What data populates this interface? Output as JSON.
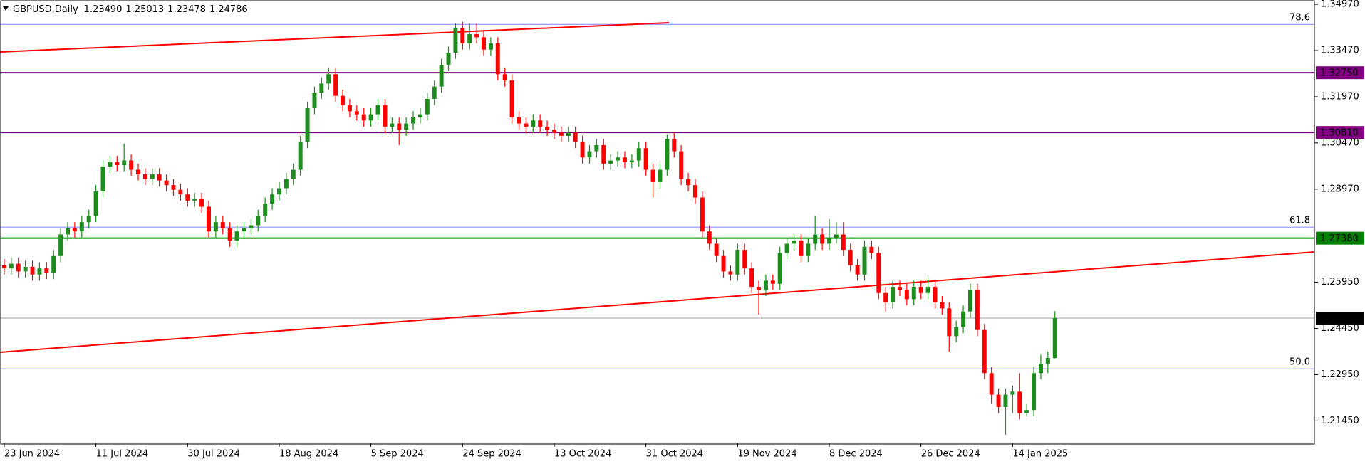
{
  "chart_data": {
    "type": "candlestick",
    "title": "GBPUSD,Daily",
    "ohlc_labels": [
      "1.23490",
      "1.25013",
      "1.23478",
      "1.24786"
    ],
    "colors": {
      "up": "#1e8c1e",
      "down": "#ff0000"
    },
    "xlim": [
      -0.6,
      185.8
    ],
    "ylim": [
      1.2072,
      1.3511
    ],
    "xticks": [
      {
        "value": 0,
        "label": "23 Jun 2024"
      },
      {
        "value": 13,
        "label": "11 Jul 2024"
      },
      {
        "value": 26,
        "label": "30 Jul 2024"
      },
      {
        "value": 39,
        "label": "18 Aug 2024"
      },
      {
        "value": 52,
        "label": "5 Sep 2024"
      },
      {
        "value": 65,
        "label": "24 Sep 2024"
      },
      {
        "value": 78,
        "label": "13 Oct 2024"
      },
      {
        "value": 91,
        "label": "31 Oct 2024"
      },
      {
        "value": 104,
        "label": "19 Nov 2024"
      },
      {
        "value": 117,
        "label": "8 Dec 2024"
      },
      {
        "value": 130,
        "label": "26 Dec 2024"
      },
      {
        "value": 143,
        "label": "14 Jan 2025"
      }
    ],
    "yticks": [
      {
        "value": 1.3497,
        "label": "1.34970"
      },
      {
        "value": 1.3347,
        "label": "1.33470"
      },
      {
        "value": 1.3197,
        "label": "1.31970"
      },
      {
        "value": 1.3047,
        "label": "1.30470"
      },
      {
        "value": 1.2897,
        "label": "1.28970"
      },
      {
        "value": 1.2595,
        "label": "1.25950"
      },
      {
        "value": 1.2445,
        "label": "1.24450"
      },
      {
        "value": 1.2295,
        "label": "1.22950"
      },
      {
        "value": 1.2145,
        "label": "1.21450"
      }
    ],
    "levels": [
      {
        "value": 1.3275,
        "label": "1.32750",
        "color": "#800080"
      },
      {
        "value": 1.3081,
        "label": "1.30810",
        "color": "#800080"
      },
      {
        "value": 1.2738,
        "label": "1.27380",
        "color": "#008000"
      },
      {
        "value": 1.24786,
        "label": "1.24786",
        "color": "#000000"
      }
    ],
    "fib_levels": [
      {
        "value": 1.3432,
        "label": "78.6"
      },
      {
        "value": 1.2774,
        "label": "61.8"
      },
      {
        "value": 1.2314,
        "label": "50.0"
      }
    ],
    "ohlc": [
      [
        1.265,
        1.267,
        1.262,
        1.264
      ],
      [
        1.264,
        1.2675,
        1.262,
        1.2655
      ],
      [
        1.2655,
        1.2675,
        1.261,
        1.263
      ],
      [
        1.263,
        1.2665,
        1.261,
        1.2645
      ],
      [
        1.2645,
        1.2665,
        1.26,
        1.262
      ],
      [
        1.262,
        1.266,
        1.26,
        1.264
      ],
      [
        1.264,
        1.266,
        1.2605,
        1.2625
      ],
      [
        1.2625,
        1.27,
        1.2605,
        1.268
      ],
      [
        1.268,
        1.277,
        1.266,
        1.275
      ],
      [
        1.275,
        1.279,
        1.273,
        1.277
      ],
      [
        1.277,
        1.279,
        1.274,
        1.276
      ],
      [
        1.276,
        1.281,
        1.274,
        1.279
      ],
      [
        1.279,
        1.283,
        1.277,
        1.281
      ],
      [
        1.281,
        1.291,
        1.279,
        1.289
      ],
      [
        1.289,
        1.299,
        1.287,
        1.297
      ],
      [
        1.297,
        1.3005,
        1.295,
        1.2985
      ],
      [
        1.2985,
        1.3005,
        1.2955,
        1.2975
      ],
      [
        1.2975,
        1.3045,
        1.2955,
        1.299
      ],
      [
        1.299,
        1.301,
        1.294,
        1.296
      ],
      [
        1.296,
        1.298,
        1.2925,
        1.2945
      ],
      [
        1.2945,
        1.2965,
        1.291,
        1.293
      ],
      [
        1.293,
        1.2965,
        1.291,
        1.2945
      ],
      [
        1.2945,
        1.2965,
        1.2905,
        1.2925
      ],
      [
        1.2925,
        1.2945,
        1.289,
        1.291
      ],
      [
        1.291,
        1.293,
        1.2875,
        1.2895
      ],
      [
        1.2895,
        1.2915,
        1.286,
        1.288
      ],
      [
        1.288,
        1.29,
        1.284,
        1.286
      ],
      [
        1.286,
        1.2885,
        1.284,
        1.2865
      ],
      [
        1.2865,
        1.2885,
        1.282,
        1.284
      ],
      [
        1.284,
        1.286,
        1.274,
        1.276
      ],
      [
        1.276,
        1.281,
        1.274,
        1.279
      ],
      [
        1.279,
        1.281,
        1.275,
        1.277
      ],
      [
        1.277,
        1.279,
        1.271,
        1.273
      ],
      [
        1.273,
        1.278,
        1.271,
        1.276
      ],
      [
        1.276,
        1.279,
        1.274,
        1.277
      ],
      [
        1.277,
        1.28,
        1.275,
        1.278
      ],
      [
        1.278,
        1.283,
        1.276,
        1.281
      ],
      [
        1.281,
        1.287,
        1.279,
        1.285
      ],
      [
        1.285,
        1.29,
        1.283,
        1.288
      ],
      [
        1.288,
        1.292,
        1.286,
        1.29
      ],
      [
        1.29,
        1.295,
        1.288,
        1.293
      ],
      [
        1.293,
        1.298,
        1.291,
        1.296
      ],
      [
        1.296,
        1.307,
        1.294,
        1.305
      ],
      [
        1.305,
        1.318,
        1.303,
        1.316
      ],
      [
        1.316,
        1.323,
        1.314,
        1.321
      ],
      [
        1.321,
        1.326,
        1.319,
        1.324
      ],
      [
        1.324,
        1.329,
        1.322,
        1.327
      ],
      [
        1.327,
        1.329,
        1.318,
        1.32
      ],
      [
        1.32,
        1.322,
        1.315,
        1.317
      ],
      [
        1.317,
        1.319,
        1.313,
        1.315
      ],
      [
        1.315,
        1.317,
        1.312,
        1.314
      ],
      [
        1.314,
        1.316,
        1.31,
        1.312
      ],
      [
        1.312,
        1.316,
        1.31,
        1.314
      ],
      [
        1.314,
        1.319,
        1.312,
        1.317
      ],
      [
        1.317,
        1.319,
        1.308,
        1.31
      ],
      [
        1.31,
        1.313,
        1.308,
        1.311
      ],
      [
        1.311,
        1.313,
        1.304,
        1.309
      ],
      [
        1.309,
        1.313,
        1.307,
        1.311
      ],
      [
        1.311,
        1.315,
        1.309,
        1.313
      ],
      [
        1.313,
        1.316,
        1.311,
        1.314
      ],
      [
        1.314,
        1.321,
        1.312,
        1.319
      ],
      [
        1.319,
        1.325,
        1.317,
        1.323
      ],
      [
        1.323,
        1.332,
        1.321,
        1.33
      ],
      [
        1.33,
        1.336,
        1.328,
        1.334
      ],
      [
        1.334,
        1.3435,
        1.332,
        1.342
      ],
      [
        1.342,
        1.344,
        1.335,
        1.337
      ],
      [
        1.337,
        1.3435,
        1.335,
        1.34
      ],
      [
        1.34,
        1.3435,
        1.337,
        1.339
      ],
      [
        1.339,
        1.341,
        1.333,
        1.335
      ],
      [
        1.335,
        1.339,
        1.333,
        1.337
      ],
      [
        1.337,
        1.339,
        1.325,
        1.327
      ],
      [
        1.327,
        1.329,
        1.323,
        1.325
      ],
      [
        1.325,
        1.327,
        1.311,
        1.313
      ],
      [
        1.313,
        1.315,
        1.309,
        1.311
      ],
      [
        1.311,
        1.313,
        1.308,
        1.31
      ],
      [
        1.31,
        1.314,
        1.308,
        1.312
      ],
      [
        1.312,
        1.314,
        1.308,
        1.31
      ],
      [
        1.31,
        1.312,
        1.307,
        1.309
      ],
      [
        1.309,
        1.311,
        1.306,
        1.308
      ],
      [
        1.308,
        1.31,
        1.305,
        1.307
      ],
      [
        1.307,
        1.31,
        1.305,
        1.308
      ],
      [
        1.308,
        1.31,
        1.303,
        1.305
      ],
      [
        1.305,
        1.307,
        1.298,
        1.3
      ],
      [
        1.3,
        1.304,
        1.298,
        1.302
      ],
      [
        1.302,
        1.306,
        1.3,
        1.304
      ],
      [
        1.304,
        1.306,
        1.296,
        1.298
      ],
      [
        1.298,
        1.301,
        1.296,
        1.299
      ],
      [
        1.299,
        1.302,
        1.297,
        1.3
      ],
      [
        1.3,
        1.302,
        1.2965,
        1.2985
      ],
      [
        1.2985,
        1.301,
        1.2965,
        1.299
      ],
      [
        1.299,
        1.305,
        1.297,
        1.303
      ],
      [
        1.303,
        1.305,
        1.294,
        1.296
      ],
      [
        1.296,
        1.298,
        1.287,
        1.292
      ],
      [
        1.292,
        1.298,
        1.29,
        1.296
      ],
      [
        1.296,
        1.3075,
        1.294,
        1.306
      ],
      [
        1.306,
        1.308,
        1.3,
        1.302
      ],
      [
        1.302,
        1.304,
        1.291,
        1.293
      ],
      [
        1.293,
        1.295,
        1.289,
        1.291
      ],
      [
        1.291,
        1.293,
        1.285,
        1.287
      ],
      [
        1.287,
        1.289,
        1.274,
        1.276
      ],
      [
        1.276,
        1.278,
        1.27,
        1.272
      ],
      [
        1.272,
        1.274,
        1.266,
        1.268
      ],
      [
        1.268,
        1.27,
        1.261,
        1.263
      ],
      [
        1.263,
        1.265,
        1.26,
        1.262
      ],
      [
        1.262,
        1.272,
        1.26,
        1.27
      ],
      [
        1.27,
        1.272,
        1.262,
        1.264
      ],
      [
        1.264,
        1.266,
        1.256,
        1.258
      ],
      [
        1.258,
        1.26,
        1.249,
        1.257
      ],
      [
        1.257,
        1.262,
        1.255,
        1.26
      ],
      [
        1.26,
        1.262,
        1.257,
        1.259
      ],
      [
        1.259,
        1.271,
        1.257,
        1.269
      ],
      [
        1.269,
        1.274,
        1.267,
        1.272
      ],
      [
        1.272,
        1.275,
        1.27,
        1.273
      ],
      [
        1.273,
        1.275,
        1.266,
        1.268
      ],
      [
        1.268,
        1.274,
        1.266,
        1.272
      ],
      [
        1.272,
        1.281,
        1.27,
        1.275
      ],
      [
        1.275,
        1.277,
        1.27,
        1.272
      ],
      [
        1.272,
        1.28,
        1.27,
        1.274
      ],
      [
        1.274,
        1.279,
        1.272,
        1.275
      ],
      [
        1.275,
        1.279,
        1.268,
        1.27
      ],
      [
        1.27,
        1.272,
        1.263,
        1.265
      ],
      [
        1.265,
        1.267,
        1.26,
        1.262
      ],
      [
        1.262,
        1.273,
        1.26,
        1.271
      ],
      [
        1.271,
        1.273,
        1.267,
        1.269
      ],
      [
        1.269,
        1.271,
        1.254,
        1.256
      ],
      [
        1.256,
        1.258,
        1.25,
        1.253
      ],
      [
        1.253,
        1.26,
        1.251,
        1.258
      ],
      [
        1.258,
        1.26,
        1.255,
        1.257
      ],
      [
        1.257,
        1.259,
        1.252,
        1.254
      ],
      [
        1.254,
        1.26,
        1.252,
        1.258
      ],
      [
        1.258,
        1.26,
        1.254,
        1.256
      ],
      [
        1.256,
        1.261,
        1.254,
        1.258
      ],
      [
        1.258,
        1.26,
        1.251,
        1.253
      ],
      [
        1.253,
        1.255,
        1.249,
        1.251
      ],
      [
        1.251,
        1.253,
        1.237,
        1.242
      ],
      [
        1.242,
        1.247,
        1.24,
        1.245
      ],
      [
        1.245,
        1.252,
        1.243,
        1.25
      ],
      [
        1.25,
        1.259,
        1.248,
        1.257
      ],
      [
        1.257,
        1.259,
        1.242,
        1.244
      ],
      [
        1.244,
        1.246,
        1.228,
        1.23
      ],
      [
        1.23,
        1.232,
        1.22,
        1.223
      ],
      [
        1.223,
        1.225,
        1.217,
        1.219
      ],
      [
        1.219,
        1.225,
        1.21,
        1.223
      ],
      [
        1.223,
        1.226,
        1.217,
        1.224
      ],
      [
        1.224,
        1.23,
        1.215,
        1.217
      ],
      [
        1.217,
        1.22,
        1.216,
        1.218
      ],
      [
        1.218,
        1.232,
        1.216,
        1.23
      ],
      [
        1.23,
        1.236,
        1.228,
        1.233
      ],
      [
        1.233,
        1.237,
        1.23,
        1.2349
      ],
      [
        1.2349,
        1.25013,
        1.23478,
        1.24786
      ]
    ]
  }
}
